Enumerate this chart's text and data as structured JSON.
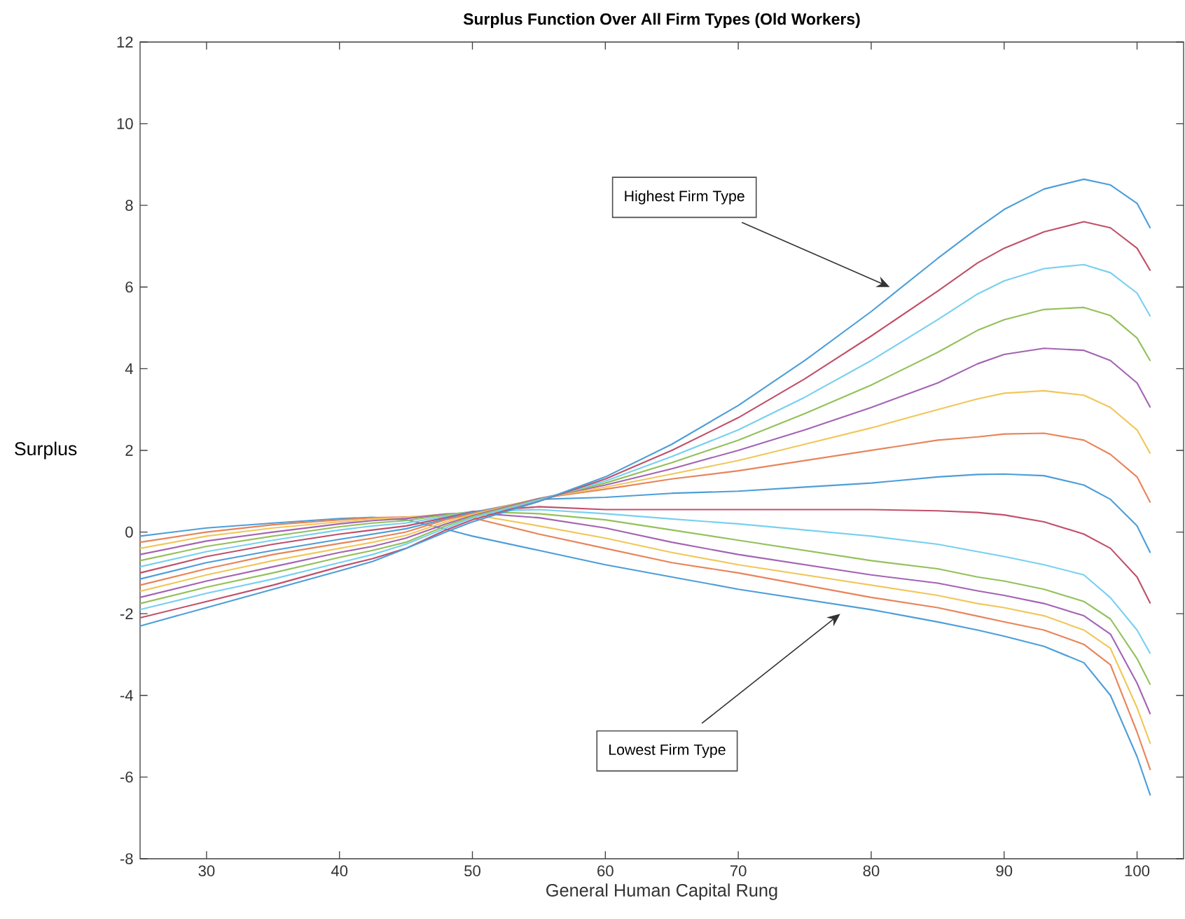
{
  "chart_data": {
    "type": "line",
    "title": "Surplus Function Over All Firm Types (Old Workers)",
    "xlabel": "General Human Capital Rung",
    "ylabel": "Surplus",
    "x": [
      25,
      30,
      35,
      40,
      42.5,
      45,
      48,
      50,
      55,
      60,
      65,
      70,
      75,
      80,
      85,
      88,
      90,
      93,
      96,
      98,
      100,
      101
    ],
    "xlim": [
      25,
      103.5
    ],
    "ylim": [
      -8,
      12
    ],
    "xticks": [
      30,
      40,
      50,
      60,
      70,
      80,
      90,
      100
    ],
    "yticks": [
      -8,
      -6,
      -4,
      -2,
      0,
      2,
      4,
      6,
      8,
      10,
      12
    ],
    "grid": false,
    "marker": "none",
    "line_style": "solid",
    "series": [
      {
        "color": "#4d9ed9",
        "values": [
          -0.1,
          0.1,
          0.22,
          0.33,
          0.36,
          0.3,
          0.07,
          -0.1,
          -0.45,
          -0.8,
          -1.1,
          -1.4,
          -1.65,
          -1.9,
          -2.2,
          -2.4,
          -2.55,
          -2.8,
          -3.2,
          -4.0,
          -5.5,
          -6.45
        ]
      },
      {
        "color": "#e8845a",
        "values": [
          -0.25,
          0.0,
          0.18,
          0.3,
          0.35,
          0.37,
          0.4,
          0.35,
          -0.05,
          -0.4,
          -0.75,
          -1.0,
          -1.3,
          -1.6,
          -1.85,
          -2.06,
          -2.2,
          -2.4,
          -2.75,
          -3.25,
          -4.9,
          -5.83
        ]
      },
      {
        "color": "#f0c75a",
        "values": [
          -0.4,
          -0.1,
          0.1,
          0.25,
          0.32,
          0.36,
          0.44,
          0.43,
          0.15,
          -0.15,
          -0.5,
          -0.8,
          -1.05,
          -1.3,
          -1.55,
          -1.75,
          -1.85,
          -2.05,
          -2.4,
          -2.85,
          -4.3,
          -5.18
        ]
      },
      {
        "color": "#a464b4",
        "values": [
          -0.55,
          -0.22,
          0.0,
          0.2,
          0.28,
          0.33,
          0.44,
          0.47,
          0.35,
          0.1,
          -0.25,
          -0.55,
          -0.8,
          -1.05,
          -1.25,
          -1.44,
          -1.55,
          -1.75,
          -2.05,
          -2.5,
          -3.7,
          -4.46
        ]
      },
      {
        "color": "#93c15b",
        "values": [
          -0.7,
          -0.35,
          -0.1,
          0.13,
          0.22,
          0.28,
          0.42,
          0.5,
          0.45,
          0.3,
          0.05,
          -0.2,
          -0.45,
          -0.7,
          -0.9,
          -1.1,
          -1.2,
          -1.4,
          -1.7,
          -2.13,
          -3.1,
          -3.74
        ]
      },
      {
        "color": "#78d0f0",
        "values": [
          -0.85,
          -0.48,
          -0.2,
          0.05,
          0.15,
          0.22,
          0.38,
          0.5,
          0.55,
          0.45,
          0.32,
          0.2,
          0.05,
          -0.1,
          -0.3,
          -0.48,
          -0.6,
          -0.8,
          -1.05,
          -1.61,
          -2.4,
          -2.98
        ]
      },
      {
        "color": "#c0506a",
        "values": [
          -1.0,
          -0.6,
          -0.3,
          -0.05,
          0.05,
          0.15,
          0.35,
          0.5,
          0.62,
          0.55,
          0.55,
          0.55,
          0.55,
          0.55,
          0.52,
          0.48,
          0.42,
          0.25,
          -0.05,
          -0.4,
          -1.1,
          -1.75
        ]
      },
      {
        "color": "#4d9ed9",
        "values": [
          -1.15,
          -0.75,
          -0.45,
          -0.18,
          -0.05,
          0.08,
          0.32,
          0.48,
          0.8,
          0.85,
          0.95,
          1.0,
          1.1,
          1.2,
          1.35,
          1.41,
          1.42,
          1.38,
          1.15,
          0.8,
          0.15,
          -0.51
        ]
      },
      {
        "color": "#e8845a",
        "values": [
          -1.3,
          -0.9,
          -0.55,
          -0.28,
          -0.15,
          0.0,
          0.3,
          0.45,
          0.82,
          1.05,
          1.3,
          1.5,
          1.75,
          2.0,
          2.25,
          2.33,
          2.4,
          2.42,
          2.25,
          1.9,
          1.35,
          0.72
        ]
      },
      {
        "color": "#f0c75a",
        "values": [
          -1.45,
          -1.05,
          -0.7,
          -0.4,
          -0.25,
          -0.08,
          0.25,
          0.43,
          0.82,
          1.1,
          1.42,
          1.75,
          2.15,
          2.55,
          3.0,
          3.26,
          3.4,
          3.46,
          3.35,
          3.05,
          2.5,
          1.92
        ]
      },
      {
        "color": "#a464b4",
        "values": [
          -1.6,
          -1.2,
          -0.85,
          -0.5,
          -0.35,
          -0.15,
          0.2,
          0.4,
          0.82,
          1.15,
          1.55,
          2.0,
          2.5,
          3.05,
          3.65,
          4.12,
          4.35,
          4.5,
          4.45,
          4.2,
          3.65,
          3.05
        ]
      },
      {
        "color": "#93c15b",
        "values": [
          -1.75,
          -1.35,
          -1.0,
          -0.62,
          -0.45,
          -0.25,
          0.15,
          0.38,
          0.8,
          1.2,
          1.7,
          2.25,
          2.9,
          3.6,
          4.4,
          4.94,
          5.2,
          5.45,
          5.5,
          5.3,
          4.75,
          4.19
        ]
      },
      {
        "color": "#78d0f0",
        "values": [
          -1.9,
          -1.5,
          -1.15,
          -0.75,
          -0.55,
          -0.3,
          0.1,
          0.35,
          0.78,
          1.25,
          1.85,
          2.5,
          3.3,
          4.2,
          5.2,
          5.83,
          6.15,
          6.45,
          6.55,
          6.35,
          5.85,
          5.28
        ]
      },
      {
        "color": "#c0506a",
        "values": [
          -2.1,
          -1.7,
          -1.3,
          -0.85,
          -0.65,
          -0.4,
          0.05,
          0.3,
          0.75,
          1.3,
          2.0,
          2.8,
          3.75,
          4.8,
          5.9,
          6.59,
          6.95,
          7.35,
          7.6,
          7.45,
          6.95,
          6.4
        ]
      },
      {
        "color": "#4d9ed9",
        "values": [
          -2.3,
          -1.85,
          -1.4,
          -0.95,
          -0.72,
          -0.4,
          0.0,
          0.25,
          0.75,
          1.35,
          2.15,
          3.1,
          4.2,
          5.4,
          6.7,
          7.44,
          7.9,
          8.4,
          8.64,
          8.5,
          8.05,
          7.44
        ]
      }
    ],
    "annotations": [
      {
        "text": "Highest Firm Type",
        "x": 81.4,
        "y": 6.0
      },
      "Lowest Firm Type"
    ]
  }
}
